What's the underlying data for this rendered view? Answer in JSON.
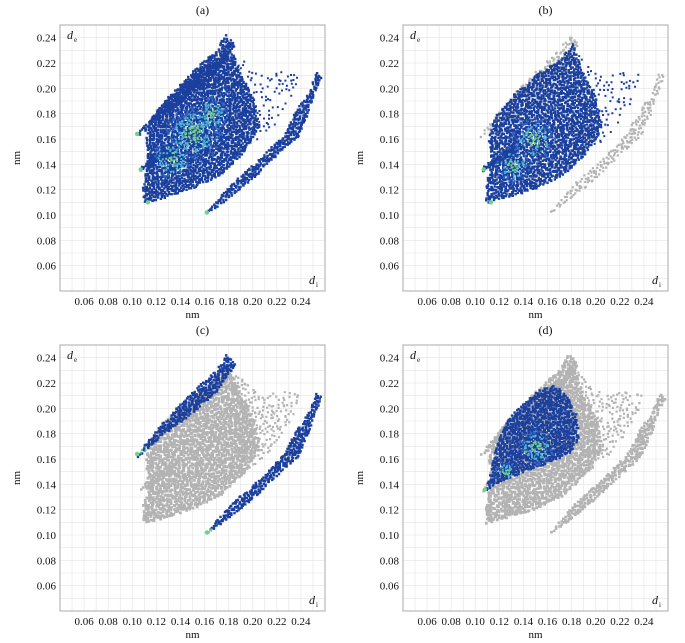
{
  "colors": {
    "grid": "#e3e3e3",
    "frame": "#9a9a9a",
    "gray": "#b3b3b3",
    "blue_dark": "#1a3f9c",
    "blue_mid": "#2f66c8",
    "cyan": "#49b6d6",
    "green": "#6fd08a",
    "yellow_green": "#a9df6a"
  },
  "chart_data": [
    {
      "type": "scatter",
      "panel_label": "(a)",
      "xlabel": "nm",
      "ylabel": "nm",
      "x_corner": {
        "main": "d",
        "sub": "i"
      },
      "y_corner": {
        "main": "d",
        "sub": "e"
      },
      "x_ticks": [
        "0.06",
        "0.08",
        "0.10",
        "0.12",
        "0.14",
        "0.16",
        "0.18",
        "0.20",
        "0.22",
        "0.24"
      ],
      "y_ticks": [
        "0.24",
        "0.22",
        "0.20",
        "0.18",
        "0.16",
        "0.14",
        "0.12",
        "0.10",
        "0.08",
        "0.06"
      ],
      "xlim": [
        0.04,
        0.26
      ],
      "ylim": [
        0.04,
        0.25
      ],
      "grid": true,
      "highlight": "all",
      "series": []
    },
    {
      "type": "scatter",
      "panel_label": "(b)",
      "xlabel": "nm",
      "ylabel": "nm",
      "x_corner": {
        "main": "d",
        "sub": "i"
      },
      "y_corner": {
        "main": "d",
        "sub": "e"
      },
      "x_ticks": [
        "0.06",
        "0.08",
        "0.10",
        "0.12",
        "0.14",
        "0.16",
        "0.18",
        "0.20",
        "0.22",
        "0.24"
      ],
      "y_ticks": [
        "0.24",
        "0.22",
        "0.20",
        "0.18",
        "0.16",
        "0.14",
        "0.12",
        "0.10",
        "0.08",
        "0.06"
      ],
      "xlim": [
        0.04,
        0.26
      ],
      "ylim": [
        0.04,
        0.25
      ],
      "grid": true,
      "highlight": "b",
      "series": []
    },
    {
      "type": "scatter",
      "panel_label": "(c)",
      "xlabel": "nm",
      "ylabel": "nm",
      "x_corner": {
        "main": "d",
        "sub": "i"
      },
      "y_corner": {
        "main": "d",
        "sub": "e"
      },
      "x_ticks": [
        "0.06",
        "0.08",
        "0.10",
        "0.12",
        "0.14",
        "0.16",
        "0.18",
        "0.20",
        "0.22",
        "0.24"
      ],
      "y_ticks": [
        "0.24",
        "0.22",
        "0.20",
        "0.18",
        "0.16",
        "0.14",
        "0.12",
        "0.10",
        "0.08",
        "0.06"
      ],
      "xlim": [
        0.04,
        0.26
      ],
      "ylim": [
        0.04,
        0.25
      ],
      "grid": true,
      "highlight": "c",
      "series": []
    },
    {
      "type": "scatter",
      "panel_label": "(d)",
      "xlabel": "nm",
      "ylabel": "nm",
      "x_corner": {
        "main": "d",
        "sub": "i"
      },
      "y_corner": {
        "main": "d",
        "sub": "e"
      },
      "x_ticks": [
        "0.06",
        "0.08",
        "0.10",
        "0.12",
        "0.14",
        "0.16",
        "0.18",
        "0.20",
        "0.22",
        "0.24"
      ],
      "y_ticks": [
        "0.24",
        "0.22",
        "0.20",
        "0.18",
        "0.16",
        "0.14",
        "0.12",
        "0.10",
        "0.08",
        "0.06"
      ],
      "xlim": [
        0.04,
        0.26
      ],
      "ylim": [
        0.04,
        0.25
      ],
      "grid": true,
      "highlight": "d",
      "series": []
    }
  ]
}
